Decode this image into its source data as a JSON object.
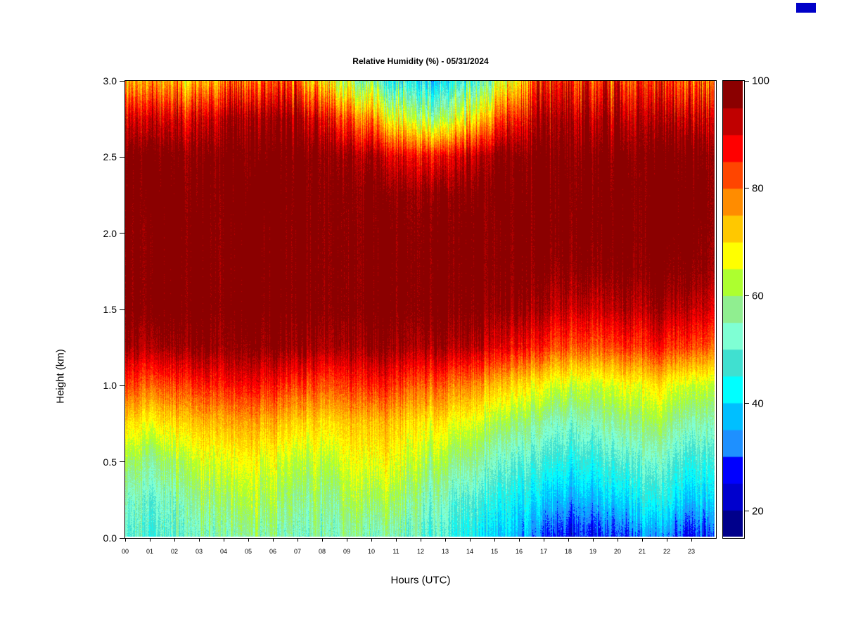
{
  "chart_data": {
    "type": "heatmap",
    "title": "Relative Humidity (%) - 05/31/2024",
    "xlabel": "Hours (UTC)",
    "ylabel": "Height (km)",
    "x_axis": {
      "ticks": [
        "00",
        "01",
        "02",
        "03",
        "04",
        "05",
        "06",
        "07",
        "08",
        "09",
        "10",
        "11",
        "12",
        "13",
        "14",
        "15",
        "16",
        "17",
        "18",
        "19",
        "20",
        "21",
        "22",
        "23"
      ],
      "range": [
        0,
        24
      ]
    },
    "y_axis": {
      "ticks": [
        "0.0",
        "0.5",
        "1.0",
        "1.5",
        "2.0",
        "2.5",
        "3.0"
      ],
      "values": [
        0,
        0.5,
        1.0,
        1.5,
        2.0,
        2.5,
        3.0
      ],
      "range": [
        0,
        3
      ]
    },
    "colorbar": {
      "ticks": [
        20,
        40,
        60,
        80,
        100
      ],
      "min": 15,
      "max": 100,
      "step": 5,
      "colors": [
        "#00008B",
        "#0000CD",
        "#0000FF",
        "#1E90FF",
        "#00BFFF",
        "#00FFFF",
        "#40E0D0",
        "#7FFFD4",
        "#90EE90",
        "#ADFF2F",
        "#FFFF00",
        "#FFC800",
        "#FF8C00",
        "#FF4500",
        "#FF0000",
        "#C00000",
        "#8B0000"
      ]
    },
    "grid": {
      "hours": [
        0,
        1,
        2,
        3,
        4,
        5,
        6,
        7,
        8,
        9,
        10,
        11,
        12,
        13,
        14,
        15,
        16,
        17,
        18,
        19,
        20,
        21,
        22,
        23
      ],
      "heights_km": [
        0.0,
        0.25,
        0.5,
        0.75,
        1.0,
        1.25,
        1.5,
        1.75,
        2.0,
        2.25,
        2.5,
        2.75,
        3.0
      ],
      "values": [
        [
          50,
          50,
          51,
          54,
          56,
          57,
          55,
          54,
          53,
          55,
          54,
          52,
          49,
          46,
          42,
          38,
          33,
          28,
          26,
          29,
          32,
          33,
          28,
          30
        ],
        [
          54,
          53,
          55,
          59,
          61,
          62,
          60,
          58,
          57,
          61,
          61,
          58,
          54,
          51,
          48,
          44,
          41,
          38,
          36,
          40,
          43,
          44,
          39,
          41
        ],
        [
          61,
          59,
          61,
          65,
          67,
          67,
          65,
          63,
          63,
          67,
          67,
          65,
          61,
          59,
          56,
          51,
          49,
          47,
          45,
          49,
          51,
          51,
          47,
          49
        ],
        [
          71,
          69,
          71,
          73,
          75,
          75,
          73,
          71,
          71,
          73,
          73,
          71,
          69,
          67,
          64,
          60,
          57,
          55,
          54,
          57,
          59,
          59,
          55,
          57
        ],
        [
          84,
          82,
          83,
          85,
          87,
          87,
          85,
          83,
          83,
          85,
          85,
          83,
          81,
          79,
          76,
          72,
          68,
          66,
          64,
          66,
          68,
          68,
          64,
          66
        ],
        [
          96,
          95,
          96,
          97,
          97,
          97,
          97,
          96,
          96,
          96,
          96,
          96,
          95,
          94,
          92,
          89,
          86,
          83,
          82,
          83,
          85,
          85,
          82,
          84
        ],
        [
          100,
          100,
          100,
          100,
          100,
          100,
          100,
          100,
          100,
          100,
          100,
          100,
          100,
          99,
          98,
          97,
          95,
          93,
          92,
          93,
          94,
          94,
          92,
          93
        ],
        [
          100,
          100,
          100,
          100,
          100,
          100,
          100,
          100,
          100,
          100,
          100,
          100,
          100,
          100,
          100,
          100,
          99,
          98,
          98,
          98,
          99,
          99,
          98,
          98
        ],
        [
          100,
          100,
          100,
          100,
          100,
          100,
          100,
          100,
          100,
          100,
          100,
          100,
          100,
          100,
          100,
          100,
          100,
          100,
          100,
          100,
          100,
          100,
          100,
          100
        ],
        [
          100,
          100,
          100,
          100,
          100,
          100,
          100,
          100,
          100,
          99,
          98,
          97,
          97,
          98,
          99,
          100,
          100,
          100,
          100,
          100,
          100,
          100,
          100,
          100
        ],
        [
          100,
          100,
          100,
          100,
          100,
          100,
          100,
          100,
          99,
          96,
          92,
          88,
          87,
          90,
          95,
          99,
          100,
          100,
          100,
          100,
          100,
          100,
          100,
          100
        ],
        [
          92,
          90,
          91,
          93,
          95,
          96,
          96,
          93,
          88,
          80,
          72,
          63,
          58,
          65,
          75,
          85,
          94,
          96,
          95,
          94,
          95,
          93,
          92,
          93
        ],
        [
          76,
          74,
          75,
          77,
          79,
          81,
          82,
          76,
          68,
          58,
          50,
          43,
          39,
          46,
          55,
          66,
          84,
          88,
          86,
          84,
          86,
          83,
          80,
          82
        ]
      ]
    }
  },
  "decor": {
    "corner_swatch_color": "#0000C8"
  }
}
